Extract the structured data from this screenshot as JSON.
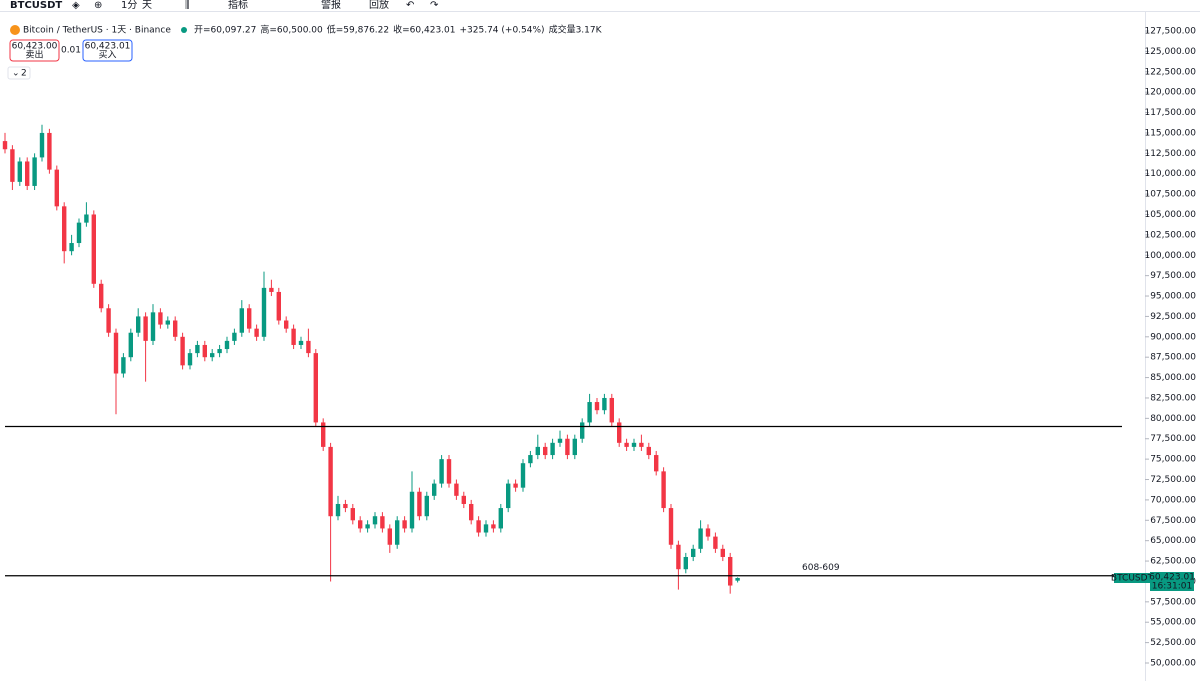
{
  "toolbar": {
    "symbol": "BTCUSDT",
    "interval": "1分",
    "timeframe": "天",
    "indicators": "指标",
    "alerts": "警报",
    "replay": "回放"
  },
  "header": {
    "title": "Bitcoin / TetherUS · 1天 · Binance",
    "ohlc": [
      {
        "label": "开",
        "value": "=60,097.27"
      },
      {
        "label": "高",
        "value": "=60,500.00"
      },
      {
        "label": "低",
        "value": "=59,876.22"
      },
      {
        "label": "收",
        "value": "=60,423.01"
      },
      {
        "label": "",
        "value": "+325.74 (+0.54%)"
      },
      {
        "label": "成交量",
        "value": "3.17K"
      }
    ],
    "sell_price": "60,423.00",
    "sell_label": "卖出",
    "spread": "0.01",
    "buy_price": "60,423.01",
    "buy_label": "买入",
    "indicator_count": "2"
  },
  "chart_data": {
    "type": "candlestick",
    "up_color": "#089981",
    "down_color": "#f23645",
    "candles": [
      [
        114000,
        115000,
        112500,
        113000
      ],
      [
        113000,
        113500,
        108000,
        109000
      ],
      [
        109000,
        112000,
        108500,
        111500
      ],
      [
        111500,
        112000,
        108000,
        108500
      ],
      [
        108500,
        112500,
        108000,
        112000
      ],
      [
        112000,
        116000,
        111500,
        115000
      ],
      [
        115000,
        115500,
        110000,
        110500
      ],
      [
        110500,
        111000,
        105500,
        106000
      ],
      [
        106000,
        106500,
        99000,
        100500
      ],
      [
        100500,
        102500,
        100000,
        101500
      ],
      [
        101500,
        104500,
        101000,
        104000
      ],
      [
        104000,
        106500,
        103500,
        105000
      ],
      [
        105000,
        105500,
        96000,
        96500
      ],
      [
        96500,
        97000,
        93000,
        93500
      ],
      [
        93500,
        94000,
        90000,
        90500
      ],
      [
        90500,
        91000,
        80500,
        85500
      ],
      [
        85500,
        88000,
        85000,
        87500
      ],
      [
        87500,
        91000,
        87000,
        90500
      ],
      [
        90500,
        93500,
        90000,
        92500
      ],
      [
        92500,
        93000,
        84500,
        89500
      ],
      [
        89500,
        94000,
        89000,
        93000
      ],
      [
        93000,
        93500,
        91000,
        91500
      ],
      [
        91500,
        92500,
        91000,
        92000
      ],
      [
        92000,
        92500,
        89500,
        90000
      ],
      [
        90000,
        90500,
        86000,
        86500
      ],
      [
        86500,
        88500,
        86000,
        88000
      ],
      [
        88000,
        89500,
        87500,
        89000
      ],
      [
        89000,
        89500,
        87000,
        87500
      ],
      [
        87500,
        88500,
        87000,
        88000
      ],
      [
        88000,
        89000,
        87500,
        88500
      ],
      [
        88500,
        90000,
        88000,
        89500
      ],
      [
        89500,
        91000,
        89000,
        90500
      ],
      [
        90500,
        94500,
        90000,
        93500
      ],
      [
        93500,
        94000,
        90500,
        91000
      ],
      [
        91000,
        91500,
        89500,
        90000
      ],
      [
        90000,
        98000,
        89500,
        96000
      ],
      [
        96000,
        97000,
        95000,
        95500
      ],
      [
        95500,
        96000,
        91500,
        92000
      ],
      [
        92000,
        92500,
        90500,
        91000
      ],
      [
        91000,
        91500,
        88500,
        89000
      ],
      [
        89000,
        90000,
        88500,
        89500
      ],
      [
        89500,
        91000,
        87500,
        88000
      ],
      [
        88000,
        88500,
        79000,
        79500
      ],
      [
        79500,
        80000,
        76000,
        76500
      ],
      [
        76500,
        77000,
        60000,
        68000
      ],
      [
        68000,
        70500,
        67500,
        69500
      ],
      [
        69500,
        70000,
        68500,
        69000
      ],
      [
        69000,
        69500,
        67000,
        67500
      ],
      [
        67500,
        68000,
        66000,
        66500
      ],
      [
        66500,
        67500,
        66000,
        67000
      ],
      [
        67000,
        68500,
        66500,
        68000
      ],
      [
        68000,
        68500,
        66000,
        66500
      ],
      [
        66500,
        67000,
        63500,
        64500
      ],
      [
        64500,
        68000,
        64000,
        67500
      ],
      [
        67500,
        68000,
        66000,
        66500
      ],
      [
        66500,
        73500,
        66000,
        71000
      ],
      [
        71000,
        71500,
        67500,
        68000
      ],
      [
        68000,
        71000,
        67500,
        70500
      ],
      [
        70500,
        72500,
        70000,
        72000
      ],
      [
        72000,
        75500,
        71500,
        75000
      ],
      [
        75000,
        75500,
        71500,
        72000
      ],
      [
        72000,
        72500,
        70000,
        70500
      ],
      [
        70500,
        71000,
        69000,
        69500
      ],
      [
        69500,
        70000,
        67000,
        67500
      ],
      [
        67500,
        68000,
        65500,
        66000
      ],
      [
        66000,
        67500,
        65500,
        67000
      ],
      [
        67000,
        67500,
        66000,
        66500
      ],
      [
        66500,
        69500,
        66000,
        69000
      ],
      [
        69000,
        72500,
        68500,
        72000
      ],
      [
        72000,
        72500,
        71000,
        71500
      ],
      [
        71500,
        75000,
        71000,
        74500
      ],
      [
        74500,
        76000,
        74000,
        75500
      ],
      [
        75500,
        78000,
        75000,
        76500
      ],
      [
        76500,
        77000,
        75000,
        75500
      ],
      [
        75500,
        77500,
        75000,
        77000
      ],
      [
        77000,
        78500,
        76500,
        77500
      ],
      [
        77500,
        78000,
        75000,
        75500
      ],
      [
        75500,
        78000,
        75000,
        77500
      ],
      [
        77500,
        80000,
        77000,
        79500
      ],
      [
        79500,
        83000,
        79000,
        82000
      ],
      [
        82000,
        82500,
        80500,
        81000
      ],
      [
        81000,
        83000,
        80500,
        82500
      ],
      [
        82500,
        83000,
        79000,
        79500
      ],
      [
        79500,
        80000,
        76500,
        77000
      ],
      [
        77000,
        77500,
        76000,
        76500
      ],
      [
        76500,
        77500,
        76000,
        77000
      ],
      [
        77000,
        78000,
        76000,
        76500
      ],
      [
        76500,
        77000,
        75000,
        75500
      ],
      [
        75500,
        76000,
        73000,
        73500
      ],
      [
        73500,
        74000,
        68500,
        69000
      ],
      [
        69000,
        69500,
        64000,
        64500
      ],
      [
        64500,
        65000,
        59000,
        61500
      ],
      [
        61500,
        63500,
        61000,
        63000
      ],
      [
        63000,
        64500,
        62500,
        64000
      ],
      [
        64000,
        67500,
        63500,
        66500
      ],
      [
        66500,
        67000,
        65000,
        65500
      ],
      [
        65500,
        66000,
        63500,
        64000
      ],
      [
        64000,
        64500,
        62500,
        63000
      ],
      [
        63000,
        63500,
        58500,
        59500
      ],
      [
        60097.27,
        60500,
        59876.22,
        60423.01
      ]
    ],
    "hlines": [
      79000,
      60700
    ],
    "annotation": "608-609",
    "price_tag": {
      "symbol": "BTCUSDT",
      "price": "60,423.01",
      "countdown": "16:31:01"
    },
    "ylim": [
      50000,
      127500
    ],
    "yticks": [
      {
        "value": 50000,
        "label": "50,000.00"
      },
      {
        "value": 52500,
        "label": "52,500.00"
      },
      {
        "value": 55000,
        "label": "55,000.00"
      },
      {
        "value": 57500,
        "label": "57,500.00"
      },
      {
        "value": 60000,
        "label": "60,000.00"
      },
      {
        "value": 62500,
        "label": "62,500.00"
      },
      {
        "value": 65000,
        "label": "65,000.00"
      },
      {
        "value": 67500,
        "label": "67,500.00"
      },
      {
        "value": 70000,
        "label": "70,000.00"
      },
      {
        "value": 72500,
        "label": "72,500.00"
      },
      {
        "value": 75000,
        "label": "75,000.00"
      },
      {
        "value": 77500,
        "label": "77,500.00"
      },
      {
        "value": 80000,
        "label": "80,000.00"
      },
      {
        "value": 82500,
        "label": "82,500.00"
      },
      {
        "value": 85000,
        "label": "85,000.00"
      },
      {
        "value": 87500,
        "label": "87,500.00"
      },
      {
        "value": 90000,
        "label": "90,000.00"
      },
      {
        "value": 92500,
        "label": "92,500.00"
      },
      {
        "value": 95000,
        "label": "95,000.00"
      },
      {
        "value": 97500,
        "label": "97,500.00"
      },
      {
        "value": 100000,
        "label": "100,000.00"
      },
      {
        "value": 102500,
        "label": "102,500.00"
      },
      {
        "value": 105000,
        "label": "105,000.00"
      },
      {
        "value": 107500,
        "label": "107,500.00"
      },
      {
        "value": 110000,
        "label": "110,000.00"
      },
      {
        "value": 112500,
        "label": "112,500.00"
      },
      {
        "value": 115000,
        "label": "115,000.00"
      },
      {
        "value": 117500,
        "label": "117,500.00"
      },
      {
        "value": 120000,
        "label": "120,000.00"
      },
      {
        "value": 122500,
        "label": "122,500.00"
      },
      {
        "value": 125000,
        "label": "125,000.00"
      },
      {
        "value": 127500,
        "label": "127,500.00"
      }
    ]
  }
}
